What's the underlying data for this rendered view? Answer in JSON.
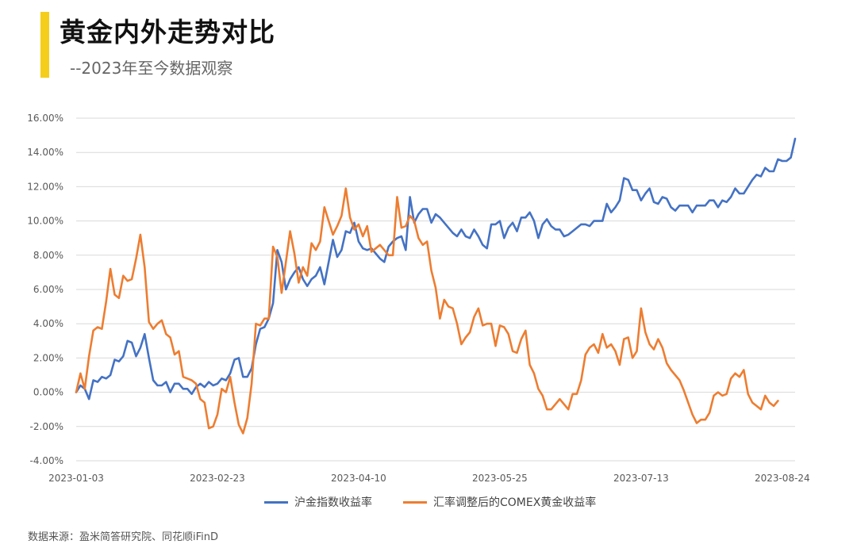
{
  "header": {
    "title": "黄金内外走势对比",
    "subtitle": "--2023年至今数据观察",
    "accent_color": "#F5CE1C"
  },
  "source_text": "数据来源：盈米简答研究院、同花顺iFinD",
  "chart_data": {
    "type": "line",
    "title": "",
    "xlabel": "",
    "ylabel": "",
    "ylim": [
      -4,
      16
    ],
    "y_ticks": [
      "16.00%",
      "14.00%",
      "12.00%",
      "10.00%",
      "8.00%",
      "6.00%",
      "4.00%",
      "2.00%",
      "0.00%",
      "-2.00%",
      "-4.00%"
    ],
    "x_tick_labels": [
      "2023-01-03",
      "2023-02-23",
      "2023-04-10",
      "2023-05-25",
      "2023-07-13",
      "2023-08-24"
    ],
    "x_tick_index": [
      0,
      33,
      66,
      99,
      132,
      165
    ],
    "grid": true,
    "legend_position": "bottom",
    "series": [
      {
        "name": "沪金指数收益率",
        "color": "#4472C4",
        "values": [
          0,
          0.4,
          0.2,
          -0.4,
          0.7,
          0.6,
          0.9,
          0.8,
          1.0,
          1.9,
          1.8,
          2.1,
          3.0,
          2.9,
          2.1,
          2.6,
          3.4,
          2.0,
          0.7,
          0.4,
          0.4,
          0.6,
          0.0,
          0.5,
          0.5,
          0.2,
          0.2,
          -0.1,
          0.3,
          0.5,
          0.3,
          0.6,
          0.4,
          0.5,
          0.8,
          0.7,
          1.1,
          1.9,
          2.0,
          0.9,
          0.9,
          1.4,
          2.8,
          3.7,
          3.8,
          4.3,
          5.2,
          8.3,
          7.6,
          6.0,
          6.6,
          7.0,
          7.3,
          6.6,
          6.2,
          6.6,
          6.8,
          7.3,
          6.3,
          7.6,
          8.9,
          7.9,
          8.3,
          9.4,
          9.3,
          9.9,
          8.8,
          8.4,
          8.3,
          8.4,
          8.1,
          7.8,
          7.6,
          8.5,
          8.8,
          9.0,
          9.1,
          8.3,
          11.4,
          9.9,
          10.4,
          10.7,
          10.7,
          9.9,
          10.4,
          10.2,
          9.9,
          9.6,
          9.3,
          9.1,
          9.5,
          9.1,
          9.0,
          9.5,
          9.1,
          8.6,
          8.4,
          9.8,
          9.8,
          10.0,
          9.0,
          9.6,
          9.9,
          9.4,
          10.2,
          10.2,
          10.5,
          10.0,
          9.0,
          9.8,
          10.1,
          9.7,
          9.5,
          9.5,
          9.1,
          9.2,
          9.4,
          9.6,
          9.8,
          9.8,
          9.7,
          10.0,
          10.0,
          10.0,
          11.0,
          10.5,
          10.8,
          11.2,
          12.5,
          12.4,
          11.8,
          11.8,
          11.2,
          11.6,
          11.9,
          11.1,
          11.0,
          11.4,
          11.3,
          10.8,
          10.6,
          10.9,
          10.9,
          10.9,
          10.5,
          10.9,
          10.9,
          10.9,
          11.2,
          11.2,
          10.8,
          11.2,
          11.1,
          11.4,
          11.9,
          11.6,
          11.6,
          12.0,
          12.4,
          12.7,
          12.6,
          13.1,
          12.9,
          12.9,
          13.6,
          13.5,
          13.5,
          13.7,
          14.8
        ]
      },
      {
        "name": "汇率调整后的COMEX黄金收益率",
        "color": "#ED7D31",
        "values": [
          0,
          1.1,
          0.2,
          2.1,
          3.6,
          3.8,
          3.7,
          5.3,
          7.2,
          5.7,
          5.5,
          6.8,
          6.5,
          6.6,
          7.8,
          9.2,
          7.3,
          4.1,
          3.7,
          4.0,
          4.2,
          3.4,
          3.2,
          2.2,
          2.4,
          0.9,
          0.8,
          0.7,
          0.5,
          -0.4,
          -0.6,
          -2.1,
          -2.0,
          -1.3,
          0.2,
          0.0,
          0.9,
          -0.6,
          -1.9,
          -2.4,
          -1.5,
          0.5,
          4.0,
          3.9,
          4.3,
          4.3,
          8.5,
          7.9,
          5.8,
          7.6,
          9.4,
          8.1,
          6.4,
          7.3,
          6.8,
          8.7,
          8.3,
          8.8,
          10.8,
          10.0,
          9.2,
          9.7,
          10.3,
          11.9,
          10.2,
          9.5,
          9.8,
          9.1,
          9.7,
          8.2,
          8.4,
          8.6,
          8.3,
          8.0,
          8.0,
          11.4,
          9.6,
          9.7,
          10.3,
          10.0,
          9.0,
          8.6,
          8.8,
          7.1,
          6.1,
          4.3,
          5.4,
          5.0,
          4.9,
          4.0,
          2.8,
          3.2,
          3.5,
          4.4,
          4.9,
          3.9,
          4.0,
          4.0,
          2.7,
          3.9,
          3.8,
          3.4,
          2.4,
          2.3,
          3.1,
          3.6,
          1.6,
          1.1,
          0.2,
          -0.2,
          -1.0,
          -1.0,
          -0.7,
          -0.4,
          -0.7,
          -1.0,
          -0.1,
          -0.1,
          0.7,
          2.2,
          2.6,
          2.8,
          2.3,
          3.4,
          2.6,
          2.8,
          2.4,
          1.6,
          3.1,
          3.2,
          2.0,
          2.4,
          4.9,
          3.5,
          2.8,
          2.5,
          3.1,
          2.6,
          1.7,
          1.3,
          1.0,
          0.7,
          0.1,
          -0.6,
          -1.3,
          -1.8,
          -1.6,
          -1.6,
          -1.2,
          -0.2,
          0.0,
          -0.2,
          -0.1,
          0.8,
          1.1,
          0.9,
          1.3,
          -0.1,
          -0.6,
          -0.8,
          -1.0,
          -0.2,
          -0.6,
          -0.8,
          -0.5
        ]
      }
    ]
  }
}
